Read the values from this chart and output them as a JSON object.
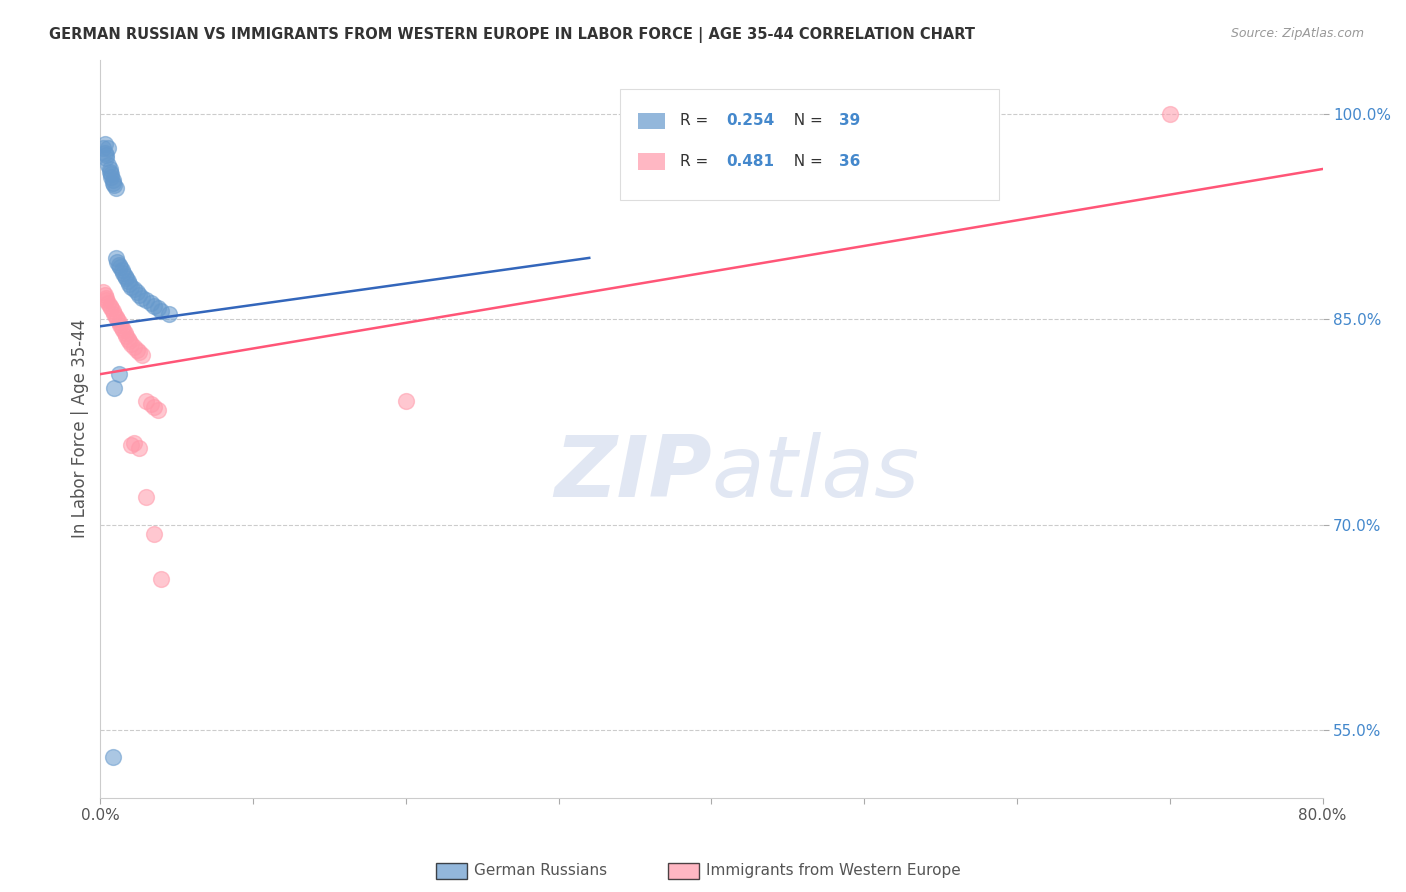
{
  "title": "GERMAN RUSSIAN VS IMMIGRANTS FROM WESTERN EUROPE IN LABOR FORCE | AGE 35-44 CORRELATION CHART",
  "source": "Source: ZipAtlas.com",
  "ylabel": "In Labor Force | Age 35-44",
  "xlim": [
    0.0,
    0.8
  ],
  "ylim": [
    0.5,
    1.04
  ],
  "xticks": [
    0.0,
    0.1,
    0.2,
    0.3,
    0.4,
    0.5,
    0.6,
    0.7,
    0.8
  ],
  "xticklabels": [
    "0.0%",
    "",
    "",
    "",
    "",
    "",
    "",
    "",
    "80.0%"
  ],
  "yticks": [
    0.55,
    0.7,
    0.85,
    1.0
  ],
  "yticklabels": [
    "55.0%",
    "70.0%",
    "85.0%",
    "100.0%"
  ],
  "blue_color": "#6699CC",
  "pink_color": "#FF99AA",
  "blue_line_color": "#3366BB",
  "pink_line_color": "#FF5577",
  "legend_R_blue": "R = 0.254",
  "legend_N_blue": "N = 39",
  "legend_R_pink": "R = 0.481",
  "legend_N_pink": "N = 36",
  "legend_label_blue": "German Russians",
  "legend_label_pink": "Immigrants from Western Europe",
  "watermark_zip": "ZIP",
  "watermark_atlas": "atlas",
  "grid_color": "#CCCCCC",
  "background_color": "#FFFFFF",
  "title_color": "#333333",
  "right_tick_color": "#4488CC",
  "figsize": [
    14.06,
    8.92
  ],
  "dpi": 100,
  "blue_x": [
    0.002,
    0.003,
    0.003,
    0.004,
    0.004,
    0.005,
    0.005,
    0.006,
    0.006,
    0.007,
    0.007,
    0.008,
    0.008,
    0.009,
    0.01,
    0.01,
    0.011,
    0.012,
    0.013,
    0.014,
    0.015,
    0.016,
    0.017,
    0.018,
    0.019,
    0.02,
    0.022,
    0.024,
    0.025,
    0.027,
    0.03,
    0.033,
    0.035,
    0.038,
    0.04,
    0.045,
    0.012,
    0.009,
    0.008
  ],
  "blue_y": [
    0.975,
    0.978,
    0.972,
    0.97,
    0.968,
    0.975,
    0.963,
    0.96,
    0.958,
    0.956,
    0.954,
    0.952,
    0.95,
    0.948,
    0.946,
    0.895,
    0.892,
    0.89,
    0.888,
    0.886,
    0.884,
    0.882,
    0.88,
    0.878,
    0.876,
    0.874,
    0.872,
    0.87,
    0.868,
    0.866,
    0.864,
    0.862,
    0.86,
    0.858,
    0.856,
    0.854,
    0.81,
    0.8,
    0.53
  ],
  "pink_x": [
    0.002,
    0.003,
    0.004,
    0.004,
    0.005,
    0.006,
    0.007,
    0.008,
    0.009,
    0.01,
    0.011,
    0.012,
    0.013,
    0.014,
    0.015,
    0.016,
    0.017,
    0.018,
    0.019,
    0.02,
    0.022,
    0.024,
    0.025,
    0.027,
    0.03,
    0.033,
    0.035,
    0.038,
    0.022,
    0.02,
    0.025,
    0.03,
    0.035,
    0.04,
    0.2,
    0.7
  ],
  "pink_y": [
    0.87,
    0.868,
    0.866,
    0.864,
    0.862,
    0.86,
    0.858,
    0.856,
    0.854,
    0.852,
    0.85,
    0.848,
    0.846,
    0.844,
    0.842,
    0.84,
    0.838,
    0.836,
    0.834,
    0.832,
    0.83,
    0.828,
    0.826,
    0.824,
    0.79,
    0.788,
    0.786,
    0.784,
    0.76,
    0.758,
    0.756,
    0.72,
    0.693,
    0.66,
    0.79,
    1.0
  ],
  "blue_line_x": [
    0.0,
    0.32
  ],
  "blue_line_y": [
    0.845,
    0.895
  ],
  "pink_line_x": [
    0.0,
    0.8
  ],
  "pink_line_y": [
    0.81,
    0.96
  ]
}
